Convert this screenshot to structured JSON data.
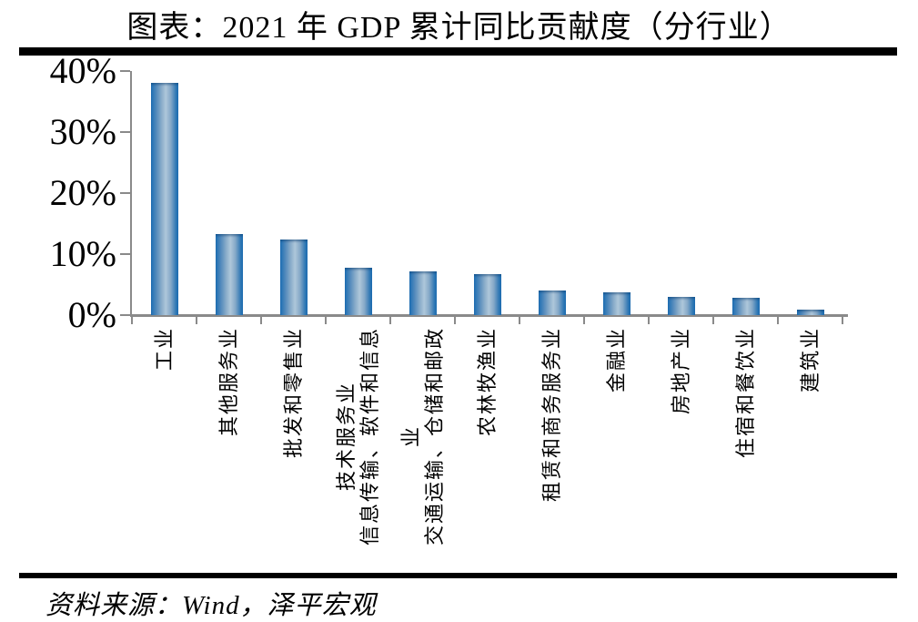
{
  "title": "图表：2021 年 GDP 累计同比贡献度（分行业）",
  "source": "资料来源：Wind，泽平宏观",
  "colors": {
    "divider": "#000000",
    "axis": "#8a8a8a",
    "bar_edge": "#1c6eb4",
    "bar_center": "#aec7da",
    "text": "#000000"
  },
  "chart_data": {
    "type": "bar",
    "title": "图表：2021 年 GDP 累计同比贡献度（分行业）",
    "categories": [
      "工业",
      "其他服务业",
      "批发和零售业",
      "信息传输、软件和信息\n技术服务业",
      "交通运输、仓储和邮政\n业",
      "农林牧渔业",
      "租赁和商务服务业",
      "金融业",
      "房地产业",
      "住宿和餐饮业",
      "建筑业"
    ],
    "values": [
      38.0,
      13.3,
      12.4,
      7.7,
      7.1,
      6.7,
      4.1,
      3.8,
      3.0,
      2.8,
      0.9
    ],
    "unit": "%",
    "xlabel": "",
    "ylabel": "",
    "ylim": [
      0,
      40
    ],
    "yticks": [
      0,
      10,
      20,
      30,
      40
    ],
    "ytick_labels": [
      "0%",
      "10%",
      "20%",
      "30%",
      "40%"
    ],
    "grid": false,
    "legend": null,
    "x_labels_rotated_90": true,
    "source": "资料来源：Wind，泽平宏观"
  }
}
